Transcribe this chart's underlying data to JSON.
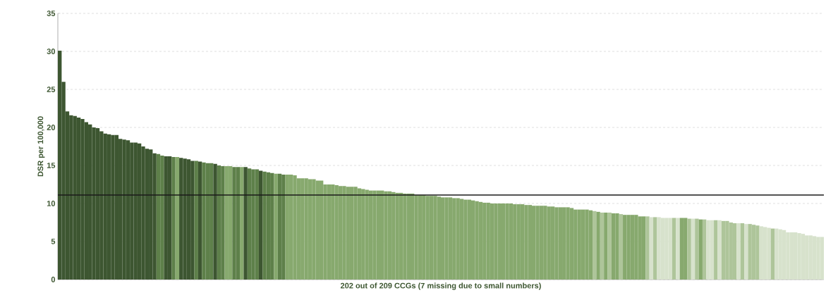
{
  "chart_data": {
    "type": "bar",
    "xlabel": "202 out of 209 CCGs (7 missing due to small numbers)",
    "ylabel": "DSR per 100,000",
    "categories": [
      null,
      null,
      null,
      null,
      null,
      null,
      null,
      null,
      null,
      null,
      null,
      null,
      null,
      null,
      null,
      null,
      null,
      null,
      null,
      null,
      null,
      null,
      null,
      null,
      null,
      null,
      null,
      null,
      null,
      null,
      null,
      null,
      null,
      null,
      null,
      null,
      null,
      null,
      null,
      null,
      null,
      null,
      null,
      null,
      null,
      null,
      null,
      null,
      null,
      null,
      null,
      null,
      null,
      null,
      null,
      null,
      null,
      null,
      null,
      null,
      null,
      null,
      null,
      null,
      null,
      null,
      null,
      null,
      null,
      null,
      null,
      null,
      null,
      null,
      null,
      null,
      null,
      null,
      null,
      null,
      null,
      null,
      null,
      null,
      null,
      null,
      null,
      null,
      null,
      null,
      null,
      null,
      null,
      null,
      null,
      null,
      null,
      null,
      null,
      null,
      null,
      null,
      null,
      null,
      null,
      null,
      null,
      null,
      null,
      null,
      null,
      null,
      null,
      null,
      null,
      null,
      null,
      null,
      null,
      null,
      null,
      null,
      null,
      null,
      null,
      null,
      null,
      null,
      null,
      null,
      null,
      null,
      null,
      null,
      null,
      null,
      null,
      null,
      null,
      null,
      null,
      null,
      null,
      null,
      null,
      null,
      null,
      null,
      null,
      null,
      null,
      null,
      null,
      null,
      null,
      null,
      null,
      null,
      null,
      null,
      null,
      null,
      null,
      null,
      null,
      null,
      null,
      null,
      null,
      null,
      null,
      null,
      null,
      null,
      null,
      null,
      null,
      null,
      null,
      null,
      null,
      null,
      null,
      null,
      null,
      null,
      null,
      null,
      null,
      null,
      null,
      null,
      null,
      null,
      null,
      null,
      null,
      null,
      null,
      null,
      null,
      null
    ],
    "values": [
      30.1,
      26.0,
      22.1,
      21.6,
      21.5,
      21.3,
      21.1,
      20.7,
      20.4,
      20.0,
      19.9,
      19.5,
      19.2,
      19.1,
      19.0,
      19.0,
      18.5,
      18.4,
      18.3,
      18.0,
      18.0,
      17.9,
      17.5,
      17.2,
      17.1,
      16.6,
      16.5,
      16.3,
      16.2,
      16.2,
      16.1,
      16.1,
      16.0,
      15.9,
      15.8,
      15.6,
      15.6,
      15.5,
      15.4,
      15.3,
      15.3,
      15.2,
      15.0,
      14.9,
      14.9,
      14.9,
      14.8,
      14.8,
      14.8,
      14.8,
      14.6,
      14.5,
      14.5,
      14.3,
      14.2,
      14.1,
      14.0,
      13.9,
      13.9,
      13.8,
      13.8,
      13.8,
      13.7,
      13.3,
      13.3,
      13.3,
      13.2,
      13.2,
      13.0,
      13.0,
      12.5,
      12.5,
      12.5,
      12.4,
      12.3,
      12.3,
      12.2,
      12.2,
      12.2,
      12.0,
      11.9,
      11.8,
      11.7,
      11.7,
      11.7,
      11.7,
      11.6,
      11.6,
      11.5,
      11.4,
      11.4,
      11.3,
      11.3,
      11.3,
      11.1,
      11.1,
      11.1,
      11.0,
      11.0,
      11.0,
      10.9,
      10.8,
      10.8,
      10.8,
      10.7,
      10.7,
      10.6,
      10.5,
      10.5,
      10.4,
      10.3,
      10.2,
      10.1,
      10.1,
      10.0,
      10.0,
      10.0,
      10.0,
      10.0,
      10.0,
      9.9,
      9.9,
      9.9,
      9.8,
      9.8,
      9.7,
      9.7,
      9.7,
      9.7,
      9.6,
      9.6,
      9.5,
      9.5,
      9.5,
      9.5,
      9.4,
      9.2,
      9.2,
      9.2,
      9.2,
      9.1,
      9.0,
      8.9,
      8.8,
      8.8,
      8.8,
      8.7,
      8.7,
      8.6,
      8.5,
      8.5,
      8.5,
      8.5,
      8.3,
      8.3,
      8.3,
      8.2,
      8.2,
      8.2,
      8.1,
      8.1,
      8.1,
      8.1,
      8.1,
      8.1,
      8.1,
      8.0,
      8.0,
      8.0,
      7.9,
      7.9,
      7.8,
      7.8,
      7.8,
      7.8,
      7.7,
      7.7,
      7.5,
      7.4,
      7.4,
      7.4,
      7.3,
      7.3,
      7.2,
      7.1,
      7.0,
      6.9,
      6.8,
      6.7,
      6.7,
      6.6,
      6.5,
      6.2,
      6.2,
      6.2,
      6.1,
      6.0,
      5.8,
      5.8,
      5.7,
      5.6,
      5.6
    ],
    "colors": [
      "#3d5631",
      "#3d5631",
      "#3d5631",
      "#3d5631",
      "#3d5631",
      "#3d5631",
      "#3d5631",
      "#3d5631",
      "#3d5631",
      "#3d5631",
      "#3d5631",
      "#3d5631",
      "#3d5631",
      "#3d5631",
      "#3d5631",
      "#3d5631",
      "#3d5631",
      "#3d5631",
      "#3d5631",
      "#3d5631",
      "#3d5631",
      "#3d5631",
      "#3d5631",
      "#3d5631",
      "#3d5631",
      "#3d5631",
      "#5e804a",
      "#5e804a",
      "#3d5631",
      "#3d5631",
      "#5e804a",
      "#87a96e",
      "#3d5631",
      "#3d5631",
      "#3d5631",
      "#3d5631",
      "#5e804a",
      "#3d5631",
      "#5e804a",
      "#5e804a",
      "#5e804a",
      "#3d5631",
      "#5e804a",
      "#5e804a",
      "#87a96e",
      "#87a96e",
      "#5e804a",
      "#5e804a",
      "#87a96e",
      "#3d5631",
      "#5e804a",
      "#5e804a",
      "#5e804a",
      "#3d5631",
      "#5e804a",
      "#5e804a",
      "#5e804a",
      "#87a96e",
      "#5e804a",
      "#5e804a",
      "#87a96e",
      "#87a96e",
      "#87a96e",
      "#87a96e",
      "#87a96e",
      "#87a96e",
      "#87a96e",
      "#87a96e",
      "#87a96e",
      "#87a96e",
      "#87a96e",
      "#87a96e",
      "#87a96e",
      "#87a96e",
      "#87a96e",
      "#87a96e",
      "#87a96e",
      "#87a96e",
      "#87a96e",
      "#87a96e",
      "#87a96e",
      "#87a96e",
      "#87a96e",
      "#87a96e",
      "#87a96e",
      "#87a96e",
      "#87a96e",
      "#87a96e",
      "#87a96e",
      "#87a96e",
      "#87a96e",
      "#87a96e",
      "#87a96e",
      "#87a96e",
      "#87a96e",
      "#87a96e",
      "#87a96e",
      "#87a96e",
      "#87a96e",
      "#87a96e",
      "#87a96e",
      "#87a96e",
      "#87a96e",
      "#87a96e",
      "#87a96e",
      "#87a96e",
      "#87a96e",
      "#87a96e",
      "#87a96e",
      "#87a96e",
      "#87a96e",
      "#87a96e",
      "#87a96e",
      "#87a96e",
      "#87a96e",
      "#87a96e",
      "#87a96e",
      "#87a96e",
      "#87a96e",
      "#87a96e",
      "#87a96e",
      "#87a96e",
      "#87a96e",
      "#87a96e",
      "#87a96e",
      "#87a96e",
      "#87a96e",
      "#87a96e",
      "#87a96e",
      "#87a96e",
      "#87a96e",
      "#87a96e",
      "#87a96e",
      "#87a96e",
      "#87a96e",
      "#87a96e",
      "#87a96e",
      "#87a96e",
      "#87a96e",
      "#87a96e",
      "#87a96e",
      "#aec59a",
      "#87a96e",
      "#aec59a",
      "#87a96e",
      "#aec59a",
      "#87a96e",
      "#87a96e",
      "#aec59a",
      "#87a96e",
      "#87a96e",
      "#87a96e",
      "#87a96e",
      "#87a96e",
      "#87a96e",
      "#aec59a",
      "#d7e2cc",
      "#aec59a",
      "#d7e2cc",
      "#d7e2cc",
      "#d7e2cc",
      "#d7e2cc",
      "#aec59a",
      "#d7e2cc",
      "#87a96e",
      "#87a96e",
      "#aec59a",
      "#d7e2cc",
      "#aec59a",
      "#87a96e",
      "#aec59a",
      "#d7e2cc",
      "#d7e2cc",
      "#aec59a",
      "#d7e2cc",
      "#aec59a",
      "#aec59a",
      "#aec59a",
      "#aec59a",
      "#d7e2cc",
      "#aec59a",
      "#d7e2cc",
      "#aec59a",
      "#aec59a",
      "#aec59a",
      "#d7e2cc",
      "#d7e2cc",
      "#d7e2cc",
      "#aec59a",
      "#d7e2cc",
      "#d7e2cc",
      "#d7e2cc",
      "#d7e2cc",
      "#d7e2cc",
      "#d7e2cc",
      "#d7e2cc",
      "#d7e2cc",
      "#d7e2cc",
      "#d7e2cc",
      "#d7e2cc",
      "#d7e2cc",
      "#d7e2cc"
    ],
    "ylim": [
      0,
      35
    ],
    "yticks": [
      0,
      5,
      10,
      15,
      20,
      25,
      30,
      35
    ],
    "grid": "y",
    "ref_lines": [
      {
        "axis": "y",
        "value": 11.1,
        "color": "#1a1a1a"
      }
    ]
  }
}
